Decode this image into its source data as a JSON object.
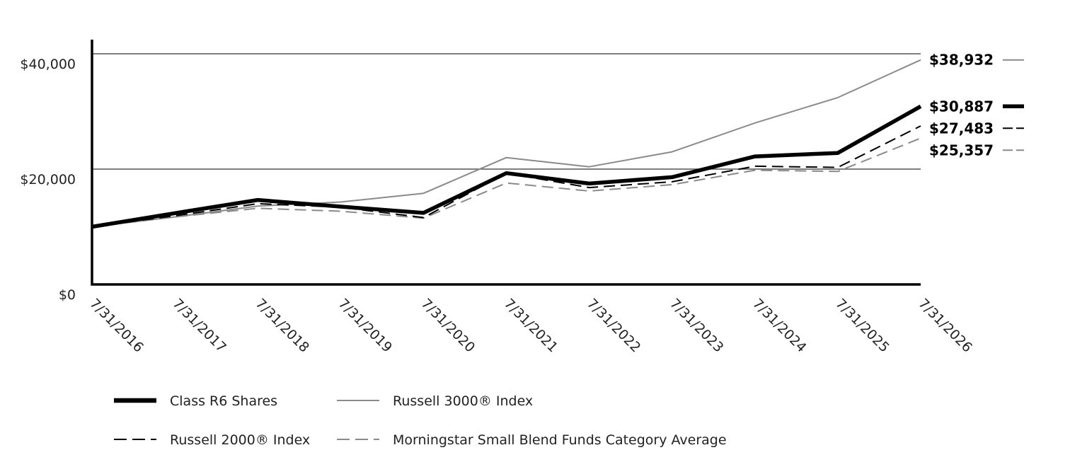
{
  "chart_data": {
    "type": "line",
    "title": "",
    "xlabel": "",
    "ylabel": "",
    "x": [
      "7/31/2016",
      "7/31/2017",
      "7/31/2018",
      "7/31/2019",
      "7/31/2020",
      "7/31/2021",
      "7/31/2022",
      "7/31/2023",
      "7/31/2024",
      "7/31/2025",
      "7/31/2026"
    ],
    "ylim": [
      0,
      40000
    ],
    "yticks": [
      0,
      20000,
      40000
    ],
    "ytick_labels": [
      "$0",
      "$20,000",
      "$40,000"
    ],
    "grid": "horizontal at $20,000 and $40,000",
    "legend_placement": "bottom",
    "series": [
      {
        "name": "Class R6 Shares",
        "style": "thick-solid",
        "color": "#000000",
        "end_label": "$30,887",
        "values": [
          10000,
          12350,
          14650,
          13500,
          12400,
          19300,
          17500,
          18600,
          22200,
          22800,
          30887
        ]
      },
      {
        "name": "Russell 3000® Index",
        "style": "thin-solid",
        "color": "#8a8a8a",
        "end_label": "$38,932",
        "values": [
          10000,
          11700,
          13600,
          14300,
          15800,
          22000,
          20400,
          23000,
          28000,
          32400,
          38932
        ]
      },
      {
        "name": "Russell 2000® Index",
        "style": "dashed",
        "color": "#000000",
        "end_label": "$27,483",
        "values": [
          10000,
          11900,
          14000,
          13400,
          11600,
          19300,
          16800,
          17800,
          20500,
          20300,
          27483
        ]
      },
      {
        "name": "Morningstar Small Blend Funds Category Average",
        "style": "dashed",
        "color": "#8a8a8a",
        "end_label": "$25,357",
        "values": [
          10000,
          11700,
          13200,
          12700,
          11500,
          17600,
          16200,
          17300,
          19800,
          19600,
          25357
        ]
      }
    ]
  }
}
